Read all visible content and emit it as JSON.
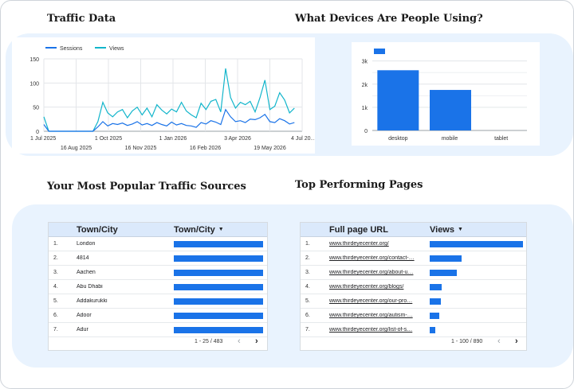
{
  "headings": {
    "traffic": "Traffic Data",
    "devices": "What Devices Are People Using?",
    "sources": "Your Most Popular Traffic Sources",
    "pages": "Top Performing Pages"
  },
  "colors": {
    "sessions": "#1a73e8",
    "views": "#12b5cb",
    "bar": "#1a73e8",
    "panel": "#e9f3fe"
  },
  "icons": {
    "sort": "sort-descending-icon",
    "prev": "chevron-left-icon",
    "next": "chevron-right-icon"
  },
  "chart_data": [
    {
      "type": "line",
      "series": [
        {
          "name": "Sessions",
          "values": [
            14,
            0,
            0,
            0,
            0,
            0,
            0,
            0,
            0,
            0,
            0,
            9,
            20,
            11,
            16,
            14,
            17,
            12,
            15,
            20,
            13,
            16,
            12,
            18,
            14,
            11,
            19,
            13,
            16,
            12,
            11,
            8,
            18,
            15,
            22,
            19,
            14,
            45,
            30,
            20,
            22,
            18,
            25,
            24,
            28,
            35,
            20,
            18,
            26,
            22,
            15,
            18
          ]
        },
        {
          "name": "Views",
          "values": [
            30,
            0,
            0,
            0,
            0,
            0,
            0,
            0,
            0,
            0,
            0,
            20,
            60,
            38,
            30,
            40,
            45,
            28,
            42,
            50,
            34,
            48,
            30,
            55,
            44,
            36,
            46,
            40,
            60,
            42,
            34,
            28,
            58,
            45,
            62,
            66,
            40,
            130,
            70,
            48,
            60,
            55,
            62,
            40,
            70,
            106,
            45,
            52,
            80,
            65,
            38,
            48
          ]
        }
      ],
      "x": [
        "2025-07-01",
        "2025-07-08",
        "2025-07-15",
        "2025-07-22",
        "2025-07-29",
        "2025-08-05",
        "2025-08-12",
        "2025-08-19",
        "2025-08-26",
        "2025-09-02",
        "2025-09-09",
        "2025-09-16",
        "2025-09-23",
        "2025-09-30",
        "2025-10-07",
        "2025-10-14",
        "2025-10-21",
        "2025-10-28",
        "2025-11-04",
        "2025-11-11",
        "2025-11-18",
        "2025-11-25",
        "2025-12-02",
        "2025-12-09",
        "2025-12-16",
        "2025-12-23",
        "2025-12-30",
        "2026-01-06",
        "2026-01-13",
        "2026-01-20",
        "2026-01-27",
        "2026-02-03",
        "2026-02-10",
        "2026-02-17",
        "2026-02-24",
        "2026-03-03",
        "2026-03-10",
        "2026-03-17",
        "2026-03-24",
        "2026-03-31",
        "2026-04-07",
        "2026-04-14",
        "2026-04-21",
        "2026-04-28",
        "2026-05-05",
        "2026-05-12",
        "2026-05-19",
        "2026-05-26",
        "2026-06-02",
        "2026-06-09",
        "2026-06-16",
        "2026-06-23"
      ],
      "xlim": [
        "2025-07-01",
        "2026-07-04"
      ],
      "xticks_top": [
        "1 Jul 2025",
        "1 Oct 2025",
        "1 Jan 2026",
        "3 Apr 2026",
        "4 Jul 20…"
      ],
      "xticks_bottom": [
        "16 Aug 2025",
        "16 Nov 2025",
        "16 Feb 2026",
        "19 May 2026"
      ],
      "ylim": [
        0,
        150
      ],
      "yticks": [
        "0",
        "50",
        "100",
        "150"
      ],
      "grid": true,
      "legend": "top-left"
    },
    {
      "type": "bar",
      "categories": [
        "desktop",
        "mobile",
        "tablet"
      ],
      "values": [
        2600,
        1750,
        0
      ],
      "ylim": [
        0,
        3400
      ],
      "yticks": [
        "0",
        "1k",
        "2k",
        "3k"
      ],
      "grid": true,
      "legend": "top-left"
    }
  ],
  "sources_table": {
    "headers": [
      "Town/City",
      "Town/City"
    ],
    "max": 100,
    "rows": [
      {
        "idx": "1.",
        "label": "London",
        "value": 100
      },
      {
        "idx": "2.",
        "label": "4814",
        "value": 100
      },
      {
        "idx": "3.",
        "label": "Aachen",
        "value": 100
      },
      {
        "idx": "4.",
        "label": "Abu Dhabi",
        "value": 100
      },
      {
        "idx": "5.",
        "label": "Addakurukki",
        "value": 100
      },
      {
        "idx": "6.",
        "label": "Adoor",
        "value": 100
      },
      {
        "idx": "7.",
        "label": "Adur",
        "value": 100
      }
    ],
    "pagination": "1 - 25 / 483"
  },
  "pages_table": {
    "headers": [
      "Full page URL",
      "Views"
    ],
    "max": 100,
    "rows": [
      {
        "idx": "1.",
        "label": "www.thirdeyecenter.org/",
        "value": 100
      },
      {
        "idx": "2.",
        "label": "www.thirdeyecenter.org/contact-…",
        "value": 34
      },
      {
        "idx": "3.",
        "label": "www.thirdeyecenter.org/about-u…",
        "value": 29
      },
      {
        "idx": "4.",
        "label": "www.thirdeyecenter.org/blogs/",
        "value": 13
      },
      {
        "idx": "5.",
        "label": "www.thirdeyecenter.org/our-pro…",
        "value": 12
      },
      {
        "idx": "6.",
        "label": "www.thirdeyecenter.org/autism-…",
        "value": 10
      },
      {
        "idx": "7.",
        "label": "www.thirdeyecenter.org/list-of-s…",
        "value": 6
      }
    ],
    "pagination": "1 - 100 / 890"
  }
}
